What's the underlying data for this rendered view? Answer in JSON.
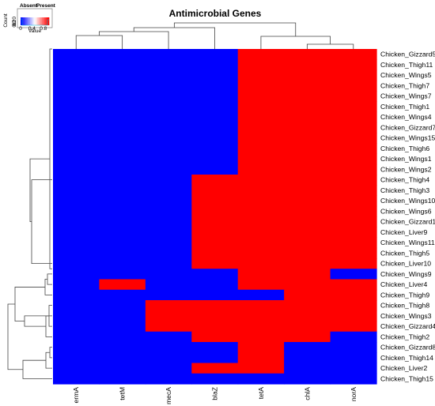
{
  "chart_data": {
    "type": "heatmap",
    "title": "Antimicrobial Genes",
    "columns": [
      "ermA",
      "tetM",
      "mecA",
      "blaZ",
      "tetA",
      "chlA",
      "norA"
    ],
    "rows": [
      "Chicken_Gizzard5",
      "Chicken_Thigh11",
      "Chicken_Wings5",
      "Chicken_Thigh7",
      "Chicken_Wings7",
      "Chicken_Thigh1",
      "Chicken_Wings4",
      "Chicken_Gizzard7",
      "Chicken_Wings15",
      "Chicken_Thigh6",
      "Chicken_Wings1",
      "Chicken_Wings2",
      "Chicken_Thigh4",
      "Chicken_Thigh3",
      "Chicken_Wings10",
      "Chicken_Wings6",
      "Chicken_Gizzard10",
      "Chicken_Liver9",
      "Chicken_Wings11",
      "Chicken_Thigh5",
      "Chicken_Liver10",
      "Chicken_Wings9",
      "Chicken_Liver4",
      "Chicken_Thigh9",
      "Chicken_Thigh8",
      "Chicken_Wings3",
      "Chicken_Gizzard4",
      "Chicken_Thigh2",
      "Chicken_Gizzard8",
      "Chicken_Thigh14",
      "Chicken_Liver2",
      "Chicken_Thigh15"
    ],
    "values": [
      [
        0,
        0,
        0,
        0,
        1,
        1,
        1
      ],
      [
        0,
        0,
        0,
        0,
        1,
        1,
        1
      ],
      [
        0,
        0,
        0,
        0,
        1,
        1,
        1
      ],
      [
        0,
        0,
        0,
        0,
        1,
        1,
        1
      ],
      [
        0,
        0,
        0,
        0,
        1,
        1,
        1
      ],
      [
        0,
        0,
        0,
        0,
        1,
        1,
        1
      ],
      [
        0,
        0,
        0,
        0,
        1,
        1,
        1
      ],
      [
        0,
        0,
        0,
        0,
        1,
        1,
        1
      ],
      [
        0,
        0,
        0,
        0,
        1,
        1,
        1
      ],
      [
        0,
        0,
        0,
        0,
        1,
        1,
        1
      ],
      [
        0,
        0,
        0,
        0,
        1,
        1,
        1
      ],
      [
        0,
        0,
        0,
        0,
        1,
        1,
        1
      ],
      [
        0,
        0,
        0,
        1,
        1,
        1,
        1
      ],
      [
        0,
        0,
        0,
        1,
        1,
        1,
        1
      ],
      [
        0,
        0,
        0,
        1,
        1,
        1,
        1
      ],
      [
        0,
        0,
        0,
        1,
        1,
        1,
        1
      ],
      [
        0,
        0,
        0,
        1,
        1,
        1,
        1
      ],
      [
        0,
        0,
        0,
        1,
        1,
        1,
        1
      ],
      [
        0,
        0,
        0,
        1,
        1,
        1,
        1
      ],
      [
        0,
        0,
        0,
        1,
        1,
        1,
        1
      ],
      [
        0,
        0,
        0,
        1,
        1,
        1,
        1
      ],
      [
        0,
        0,
        0,
        0,
        1,
        1,
        0
      ],
      [
        0,
        1,
        0,
        0,
        1,
        1,
        1
      ],
      [
        0,
        0,
        0,
        0,
        0,
        1,
        1
      ],
      [
        0,
        0,
        1,
        1,
        1,
        1,
        1
      ],
      [
        0,
        0,
        1,
        1,
        1,
        1,
        1
      ],
      [
        0,
        0,
        1,
        1,
        1,
        1,
        1
      ],
      [
        0,
        0,
        0,
        1,
        1,
        1,
        0
      ],
      [
        0,
        0,
        0,
        0,
        1,
        0,
        0
      ],
      [
        0,
        0,
        0,
        0,
        1,
        0,
        0
      ],
      [
        0,
        0,
        0,
        1,
        1,
        0,
        0
      ],
      [
        0,
        0,
        0,
        0,
        0,
        0,
        0
      ]
    ],
    "colors": {
      "absent": "#0000ff",
      "present": "#ff0000",
      "mid": "#ffffff"
    },
    "legend": {
      "absent_label": "Absent",
      "present_label": "Present",
      "key_label": "Value",
      "count_label": "Count",
      "ticks": [
        "0",
        "0.4",
        "0.8"
      ],
      "count_ticks": [
        "0",
        "60",
        "120"
      ],
      "position": "top-left"
    },
    "row_dendrogram": true,
    "col_dendrogram": true
  }
}
